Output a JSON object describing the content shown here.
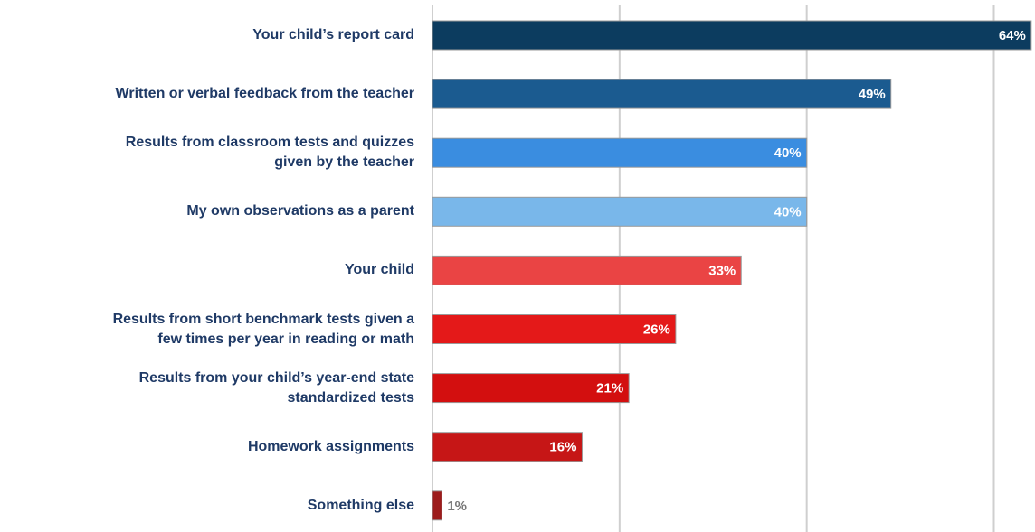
{
  "chart_data": {
    "type": "bar",
    "orientation": "horizontal",
    "categories": [
      "Your child’s report card",
      "Written or verbal feedback from the teacher",
      "Results from classroom tests and quizzes\ngiven by the teacher",
      "My own observations as a parent",
      "Your child",
      "Results from short benchmark tests given a\nfew times per year in reading or math",
      "Results from your child’s year-end state\nstandardized tests",
      "Homework assignments",
      "Something else"
    ],
    "values": [
      64,
      49,
      40,
      40,
      33,
      26,
      21,
      16,
      1
    ],
    "value_labels": [
      "64%",
      "49%",
      "40%",
      "40%",
      "33%",
      "26%",
      "21%",
      "16%",
      "1%"
    ],
    "colors": [
      "#0c3c5f",
      "#1b5b90",
      "#3a8de0",
      "#79b7ea",
      "#ea4444",
      "#e41919",
      "#d30f0f",
      "#c61616",
      "#9d1c1c"
    ],
    "xlim": [
      0,
      64.4
    ],
    "xticks": [
      0,
      20,
      40,
      60
    ],
    "grid": true
  }
}
